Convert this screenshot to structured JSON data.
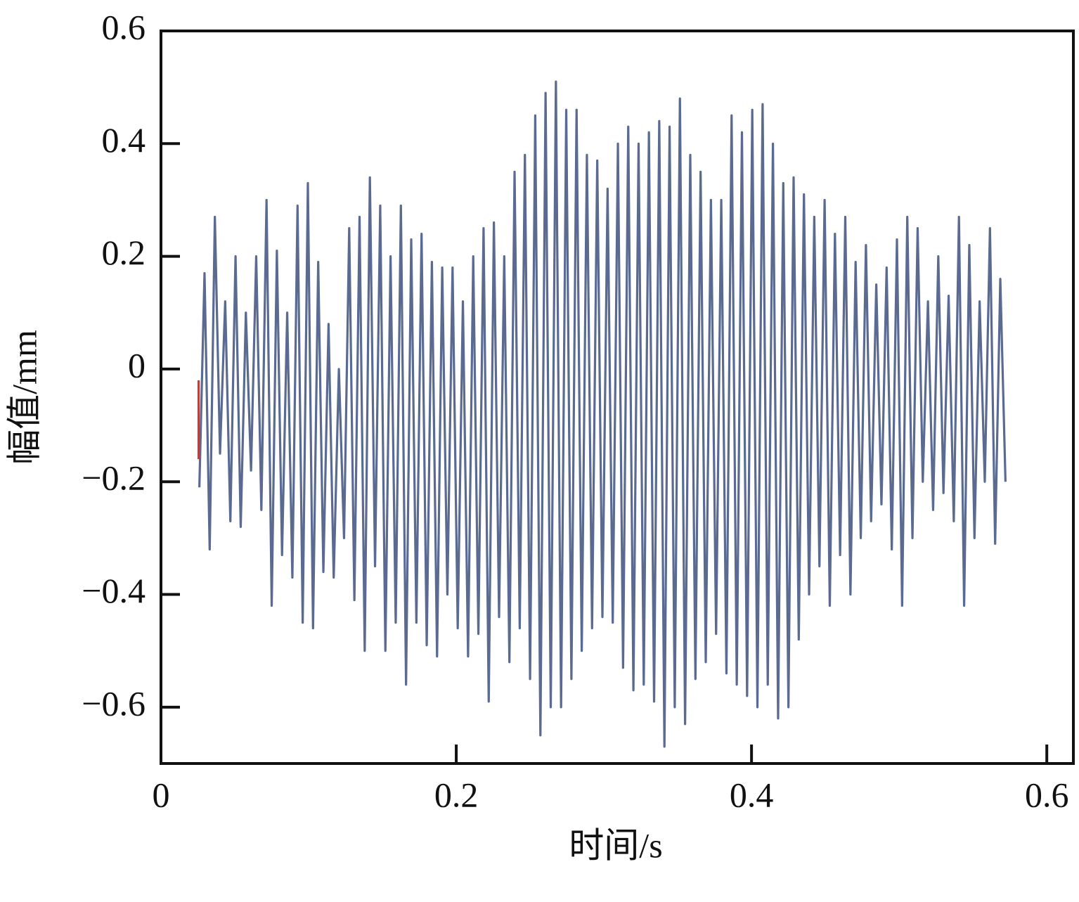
{
  "chart_data": {
    "type": "line",
    "x_label": "时间/s",
    "y_label": "幅值/mm",
    "xlim": [
      0,
      0.618
    ],
    "ylim": [
      -0.7,
      0.6
    ],
    "xticks": [
      0,
      0.2,
      0.4,
      0.6
    ],
    "yticks": [
      {
        "value": -0.6,
        "label": "−0.6"
      },
      {
        "value": -0.4,
        "label": "−0.4"
      },
      {
        "value": -0.2,
        "label": "−0.2"
      },
      0,
      0.2,
      0.4,
      0.6
    ],
    "series": [
      {
        "color": "#5a6a90",
        "x": [
          0.026,
          0.0295,
          0.033,
          0.0365,
          0.04,
          0.0435,
          0.047,
          0.0505,
          0.054,
          0.0575,
          0.061,
          0.0645,
          0.068,
          0.0715,
          0.075,
          0.0785,
          0.082,
          0.0855,
          0.089,
          0.0925,
          0.096,
          0.0995,
          0.103,
          0.1065,
          0.11,
          0.1135,
          0.117,
          0.1205,
          0.124,
          0.1275,
          0.131,
          0.1345,
          0.138,
          0.1415,
          0.145,
          0.1485,
          0.152,
          0.1555,
          0.159,
          0.1625,
          0.166,
          0.1695,
          0.173,
          0.1765,
          0.18,
          0.1835,
          0.187,
          0.1905,
          0.194,
          0.1975,
          0.201,
          0.2045,
          0.208,
          0.2115,
          0.215,
          0.2185,
          0.222,
          0.2255,
          0.229,
          0.2325,
          0.236,
          0.2395,
          0.243,
          0.2465,
          0.25,
          0.2535,
          0.257,
          0.2605,
          0.264,
          0.2675,
          0.271,
          0.2745,
          0.278,
          0.2815,
          0.285,
          0.2885,
          0.292,
          0.2955,
          0.299,
          0.3025,
          0.306,
          0.3095,
          0.313,
          0.3165,
          0.32,
          0.3235,
          0.327,
          0.3305,
          0.334,
          0.3375,
          0.341,
          0.3445,
          0.348,
          0.3515,
          0.355,
          0.3585,
          0.362,
          0.3655,
          0.369,
          0.3725,
          0.376,
          0.3795,
          0.383,
          0.3865,
          0.39,
          0.3935,
          0.397,
          0.4005,
          0.404,
          0.4075,
          0.411,
          0.4145,
          0.418,
          0.4215,
          0.425,
          0.4285,
          0.432,
          0.4355,
          0.439,
          0.4425,
          0.446,
          0.4495,
          0.453,
          0.4565,
          0.46,
          0.4635,
          0.467,
          0.4705,
          0.474,
          0.4775,
          0.481,
          0.4845,
          0.488,
          0.4915,
          0.495,
          0.4985,
          0.502,
          0.5055,
          0.509,
          0.5125,
          0.516,
          0.5195,
          0.523,
          0.5265,
          0.53,
          0.5335,
          0.537,
          0.5405,
          0.544,
          0.5475,
          0.551,
          0.5545,
          0.558,
          0.5615,
          0.565,
          0.5685,
          0.572
        ],
        "values": [
          -0.21,
          0.17,
          -0.32,
          0.27,
          -0.15,
          0.12,
          -0.27,
          0.2,
          -0.28,
          0.1,
          -0.18,
          0.2,
          -0.25,
          0.3,
          -0.42,
          0.21,
          -0.33,
          0.1,
          -0.37,
          0.29,
          -0.45,
          0.33,
          -0.46,
          0.19,
          -0.36,
          0.08,
          -0.37,
          0,
          -0.3,
          0.25,
          -0.41,
          0.27,
          -0.5,
          0.34,
          -0.35,
          0.29,
          -0.5,
          0.2,
          -0.45,
          0.29,
          -0.56,
          0.23,
          -0.45,
          0.24,
          -0.49,
          0.19,
          -0.51,
          0.18,
          -0.4,
          0.18,
          -0.46,
          0.12,
          -0.51,
          0.2,
          -0.47,
          0.25,
          -0.59,
          0.26,
          -0.44,
          0.2,
          -0.52,
          0.35,
          -0.46,
          0.38,
          -0.55,
          0.45,
          -0.65,
          0.49,
          -0.6,
          0.51,
          -0.6,
          0.46,
          -0.55,
          0.46,
          -0.5,
          0.38,
          -0.46,
          0.37,
          -0.44,
          0.32,
          -0.45,
          0.4,
          -0.53,
          0.43,
          -0.57,
          0.4,
          -0.56,
          0.42,
          -0.59,
          0.44,
          -0.67,
          0.43,
          -0.6,
          0.48,
          -0.63,
          0.38,
          -0.55,
          0.35,
          -0.52,
          0.3,
          -0.47,
          0.3,
          -0.54,
          0.45,
          -0.56,
          0.42,
          -0.58,
          0.46,
          -0.6,
          0.47,
          -0.56,
          0.4,
          -0.62,
          0.33,
          -0.6,
          0.34,
          -0.48,
          0.31,
          -0.4,
          0.27,
          -0.35,
          0.3,
          -0.42,
          0.24,
          -0.33,
          0.27,
          -0.4,
          0.19,
          -0.3,
          0.22,
          -0.27,
          0.15,
          -0.24,
          0.18,
          -0.32,
          0.23,
          -0.42,
          0.27,
          -0.3,
          0.25,
          -0.2,
          0.12,
          -0.25,
          0.2,
          -0.22,
          0.13,
          -0.27,
          0.27,
          -0.42,
          0.22,
          -0.3,
          0.12,
          -0.2,
          0.25,
          -0.31,
          0.16,
          -0.2
        ]
      },
      {
        "color": "#e0302a",
        "x": [
          0.0255,
          0.0255
        ],
        "values": [
          -0.02,
          -0.16
        ]
      }
    ]
  }
}
